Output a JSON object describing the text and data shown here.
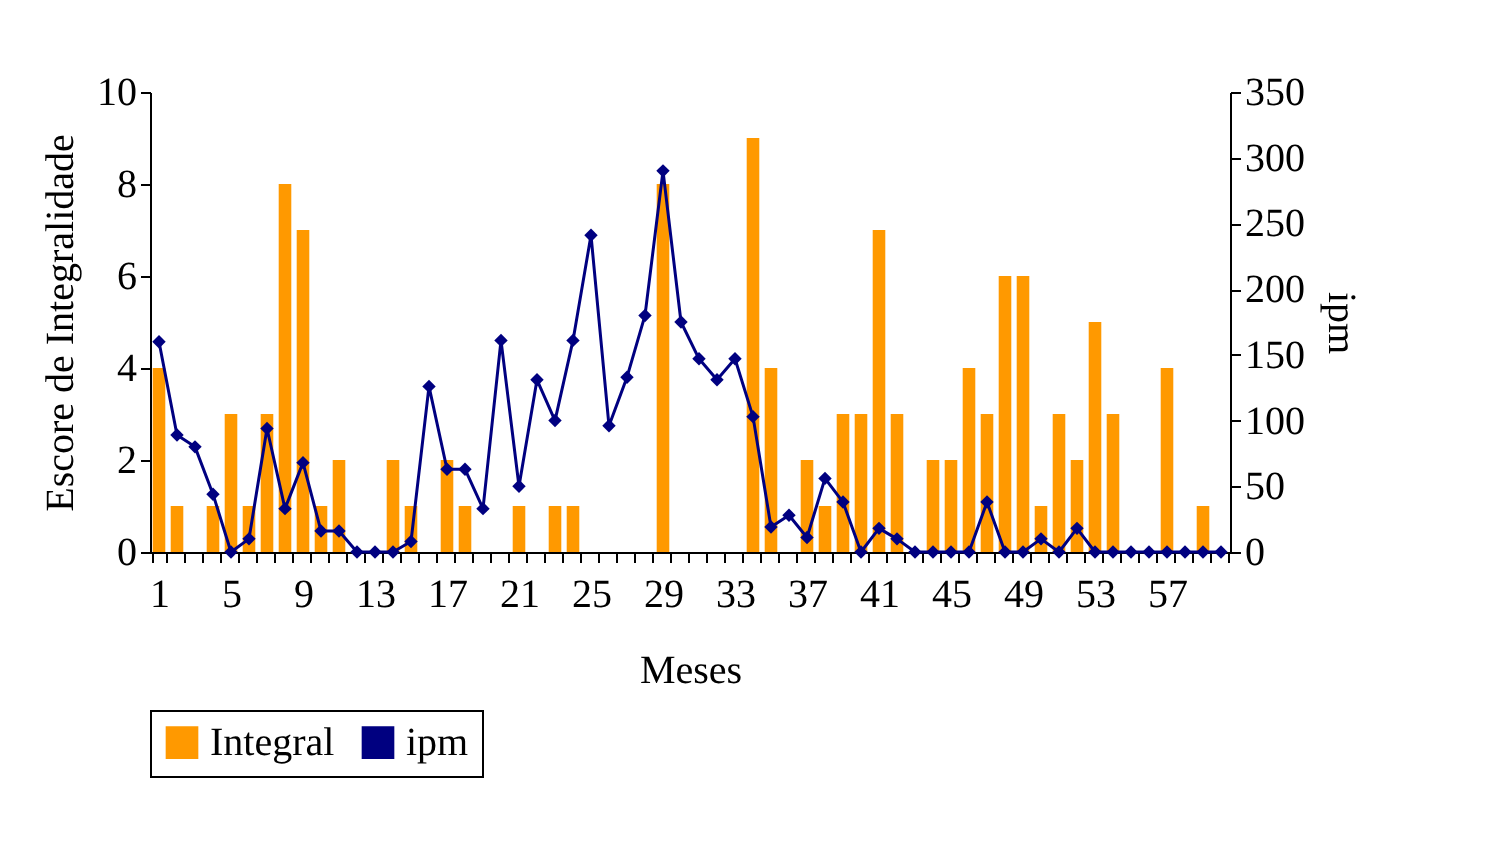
{
  "chart_data": {
    "type": "bar",
    "xlabel": "Meses",
    "ylabel": "Escore de Integralidade",
    "y2label": "ipm",
    "categories": [
      "1",
      null,
      null,
      null,
      "5",
      null,
      null,
      null,
      "9",
      null,
      null,
      null,
      "13",
      null,
      null,
      null,
      "17",
      null,
      null,
      null,
      "21",
      null,
      null,
      null,
      "25",
      null,
      null,
      null,
      "29",
      null,
      null,
      null,
      "33",
      null,
      null,
      null,
      "37",
      null,
      null,
      null,
      "41",
      null,
      null,
      null,
      "45",
      null,
      null,
      null,
      "49",
      null,
      null,
      null,
      "53",
      null,
      null,
      null,
      "57",
      null,
      null,
      null
    ],
    "ylim": [
      0,
      10
    ],
    "yticks": [
      0,
      2,
      4,
      6,
      8,
      10
    ],
    "y2lim": [
      0,
      350
    ],
    "y2ticks": [
      0,
      50,
      100,
      150,
      200,
      250,
      300,
      350
    ],
    "legend": "bottom",
    "marker": "diamond",
    "line_style": "solid",
    "series": [
      {
        "name": "Integral",
        "color": "#ff9900",
        "values": [
          4,
          1,
          0,
          1,
          3,
          1,
          3,
          8,
          7,
          1,
          2,
          0,
          0,
          2,
          1,
          0,
          2,
          1,
          0,
          0,
          1,
          0,
          1,
          1,
          0,
          0,
          0,
          0,
          8,
          0,
          0,
          0,
          0,
          9,
          4,
          0,
          2,
          1,
          3,
          3,
          7,
          3,
          0,
          2,
          2,
          4,
          3,
          6,
          6,
          1,
          3,
          2,
          5,
          3,
          0,
          0,
          4,
          0,
          1,
          0
        ]
      },
      {
        "name": "ipm",
        "type": "line",
        "axis": "y2",
        "color": "#000080",
        "values": [
          160,
          89,
          80,
          44,
          0,
          10,
          94,
          33,
          68,
          16,
          16,
          0,
          0,
          0,
          8,
          126,
          63,
          63,
          33,
          161,
          50,
          131,
          100,
          161,
          241,
          96,
          133,
          180,
          290,
          175,
          147,
          131,
          147,
          103,
          19,
          28,
          11,
          56,
          38,
          0,
          18,
          10,
          0,
          0,
          0,
          0,
          38,
          0,
          0,
          10,
          0,
          18,
          0,
          0,
          0,
          0,
          0,
          0,
          0,
          0
        ]
      }
    ]
  }
}
